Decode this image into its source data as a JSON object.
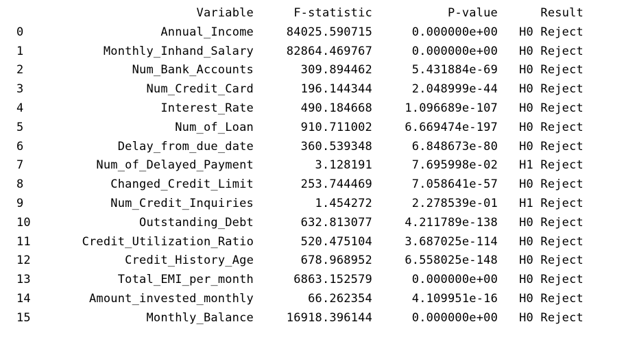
{
  "table": {
    "columns": {
      "index": "",
      "variable": "Variable",
      "f_statistic": "F-statistic",
      "p_value": "P-value",
      "result": "Result"
    },
    "rows": [
      {
        "index": "0",
        "variable": "Annual_Income",
        "f_statistic": "84025.590715",
        "p_value": "0.000000e+00",
        "result": "H0 Reject"
      },
      {
        "index": "1",
        "variable": "Monthly_Inhand_Salary",
        "f_statistic": "82864.469767",
        "p_value": "0.000000e+00",
        "result": "H0 Reject"
      },
      {
        "index": "2",
        "variable": "Num_Bank_Accounts",
        "f_statistic": "309.894462",
        "p_value": "5.431884e-69",
        "result": "H0 Reject"
      },
      {
        "index": "3",
        "variable": "Num_Credit_Card",
        "f_statistic": "196.144344",
        "p_value": "2.048999e-44",
        "result": "H0 Reject"
      },
      {
        "index": "4",
        "variable": "Interest_Rate",
        "f_statistic": "490.184668",
        "p_value": "1.096689e-107",
        "result": "H0 Reject"
      },
      {
        "index": "5",
        "variable": "Num_of_Loan",
        "f_statistic": "910.711002",
        "p_value": "6.669474e-197",
        "result": "H0 Reject"
      },
      {
        "index": "6",
        "variable": "Delay_from_due_date",
        "f_statistic": "360.539348",
        "p_value": "6.848673e-80",
        "result": "H0 Reject"
      },
      {
        "index": "7",
        "variable": "Num_of_Delayed_Payment",
        "f_statistic": "3.128191",
        "p_value": "7.695998e-02",
        "result": "H1 Reject"
      },
      {
        "index": "8",
        "variable": "Changed_Credit_Limit",
        "f_statistic": "253.744469",
        "p_value": "7.058641e-57",
        "result": "H0 Reject"
      },
      {
        "index": "9",
        "variable": "Num_Credit_Inquiries",
        "f_statistic": "1.454272",
        "p_value": "2.278539e-01",
        "result": "H1 Reject"
      },
      {
        "index": "10",
        "variable": "Outstanding_Debt",
        "f_statistic": "632.813077",
        "p_value": "4.211789e-138",
        "result": "H0 Reject"
      },
      {
        "index": "11",
        "variable": "Credit_Utilization_Ratio",
        "f_statistic": "520.475104",
        "p_value": "3.687025e-114",
        "result": "H0 Reject"
      },
      {
        "index": "12",
        "variable": "Credit_History_Age",
        "f_statistic": "678.968952",
        "p_value": "6.558025e-148",
        "result": "H0 Reject"
      },
      {
        "index": "13",
        "variable": "Total_EMI_per_month",
        "f_statistic": "6863.152579",
        "p_value": "0.000000e+00",
        "result": "H0 Reject"
      },
      {
        "index": "14",
        "variable": "Amount_invested_monthly",
        "f_statistic": "66.262354",
        "p_value": "4.109951e-16",
        "result": "H0 Reject"
      },
      {
        "index": "15",
        "variable": "Monthly_Balance",
        "f_statistic": "16918.396144",
        "p_value": "0.000000e+00",
        "result": "H0 Reject"
      }
    ]
  }
}
